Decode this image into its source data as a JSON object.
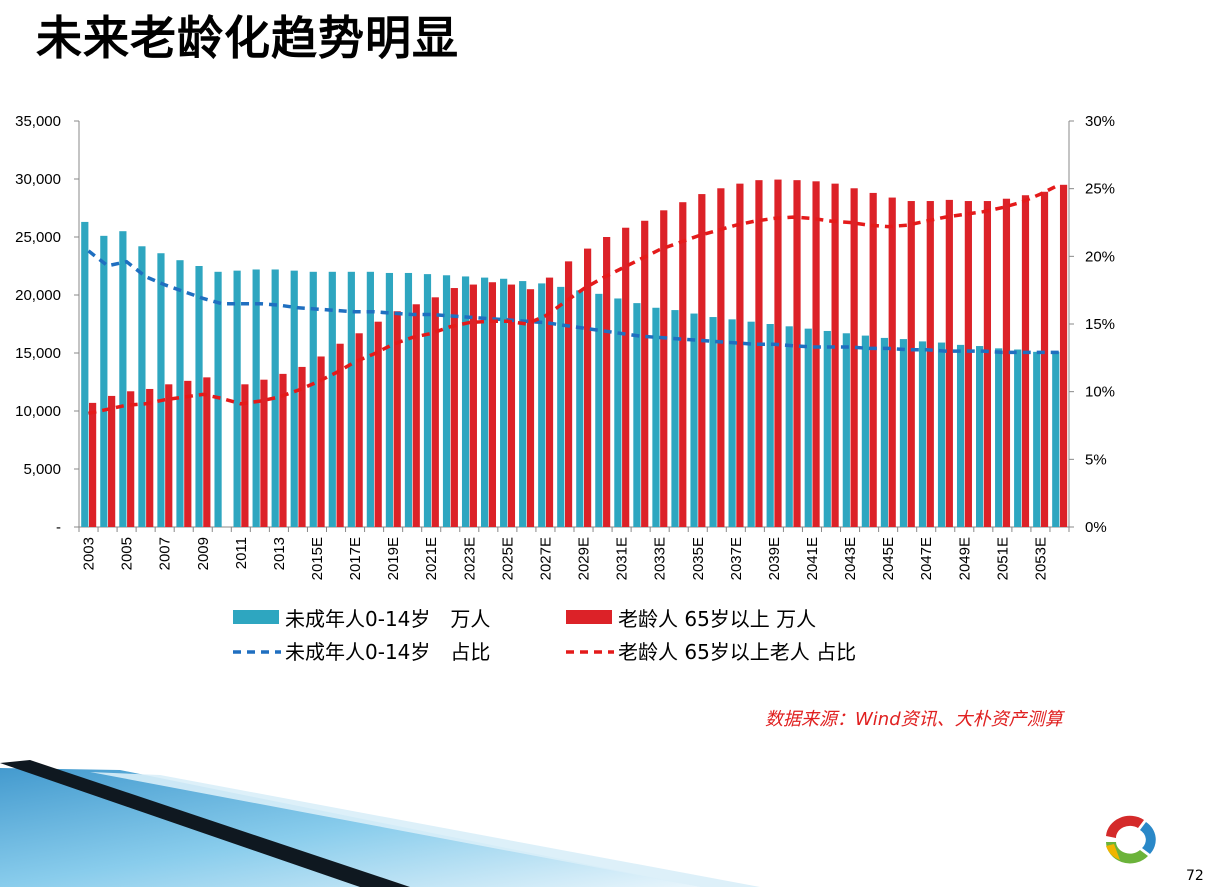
{
  "page": {
    "title": "未来老龄化趋势明显",
    "source": "数据来源：Wind资讯、大朴资产测算",
    "page_number": "72"
  },
  "colors": {
    "child_bar": "#2ea6c0",
    "elderly_bar": "#dc2228",
    "child_line": "#1f6fc0",
    "elderly_line": "#e41a1a",
    "source_text": "#e02020"
  },
  "chart_data": {
    "type": "bar",
    "categories": [
      "2003",
      "2004",
      "2005",
      "2006",
      "2007",
      "2008",
      "2009",
      "2010",
      "2011",
      "2012",
      "2013",
      "2014",
      "2015E",
      "2016E",
      "2017E",
      "2018E",
      "2019E",
      "2020E",
      "2021E",
      "2022E",
      "2023E",
      "2024E",
      "2025E",
      "2026E",
      "2027E",
      "2028E",
      "2029E",
      "2030E",
      "2031E",
      "2032E",
      "2033E",
      "2034E",
      "2035E",
      "2036E",
      "2037E",
      "2038E",
      "2039E",
      "2040E",
      "2041E",
      "2042E",
      "2043E",
      "2044E",
      "2045E",
      "2046E",
      "2047E",
      "2048E",
      "2049E",
      "2050E",
      "2051E",
      "2052E",
      "2053E",
      "2054E"
    ],
    "x_tick_labels": [
      "2003",
      "2005",
      "2007",
      "2009",
      "2011",
      "2013",
      "2015E",
      "2017E",
      "2019E",
      "2021E",
      "2023E",
      "2025E",
      "2027E",
      "2029E",
      "2031E",
      "2033E",
      "2035E",
      "2037E",
      "2039E",
      "2041E",
      "2043E",
      "2045E",
      "2047E",
      "2049E",
      "2051E",
      "2053E"
    ],
    "left_axis": {
      "ylim": [
        0,
        35000
      ],
      "ticks": [
        "-",
        "5,000",
        "10,000",
        "15,000",
        "20,000",
        "25,000",
        "30,000",
        "35,000"
      ]
    },
    "right_axis": {
      "ylim": [
        0,
        30
      ],
      "ticks": [
        "0%",
        "5%",
        "10%",
        "15%",
        "20%",
        "25%",
        "30%"
      ]
    },
    "series": [
      {
        "name": "未成年人0-14岁　万人",
        "type": "bar",
        "axis": "left",
        "values": [
          26300,
          25100,
          25500,
          24200,
          23600,
          23000,
          22500,
          22000,
          22100,
          22200,
          22200,
          22100,
          22000,
          22000,
          22000,
          22000,
          21900,
          21900,
          21800,
          21700,
          21600,
          21500,
          21400,
          21200,
          21000,
          20700,
          20400,
          20100,
          19700,
          19300,
          18900,
          18700,
          18400,
          18100,
          17900,
          17700,
          17500,
          17300,
          17100,
          16900,
          16700,
          16500,
          16300,
          16200,
          16000,
          15900,
          15700,
          15600,
          15400,
          15300,
          15100,
          15100
        ]
      },
      {
        "name": "老龄人 65岁以上 万人",
        "type": "bar",
        "axis": "left",
        "values": [
          10700,
          11300,
          11700,
          11900,
          12300,
          12600,
          12900,
          null,
          12300,
          12700,
          13200,
          13800,
          14700,
          15800,
          16700,
          17700,
          18600,
          19200,
          19800,
          20600,
          20900,
          21100,
          20900,
          20500,
          21500,
          22900,
          24000,
          25000,
          25800,
          26400,
          27300,
          28000,
          28700,
          29200,
          29600,
          29900,
          29950,
          29900,
          29800,
          29600,
          29200,
          28800,
          28400,
          28100,
          28100,
          28200,
          28100,
          28100,
          28300,
          28600,
          28900,
          29500
        ]
      },
      {
        "name": "未成年人0-14岁　占比",
        "type": "line",
        "axis": "right",
        "values": [
          20.4,
          19.3,
          19.6,
          18.5,
          17.9,
          17.4,
          16.9,
          16.5,
          16.5,
          16.5,
          16.4,
          16.2,
          16.1,
          16.0,
          15.9,
          15.9,
          15.8,
          15.7,
          15.7,
          15.6,
          15.5,
          15.4,
          15.3,
          15.2,
          15.1,
          14.9,
          14.7,
          14.5,
          14.3,
          14.1,
          14.0,
          13.9,
          13.8,
          13.7,
          13.6,
          13.5,
          13.5,
          13.4,
          13.3,
          13.3,
          13.3,
          13.2,
          13.2,
          13.1,
          13.1,
          13.0,
          13.0,
          13.0,
          12.9,
          12.9,
          12.9,
          12.9
        ]
      },
      {
        "name": "老龄人 65岁以上老人 占比",
        "type": "line",
        "axis": "right",
        "values": [
          8.4,
          8.7,
          9.0,
          9.1,
          9.4,
          9.6,
          9.8,
          9.5,
          9.1,
          9.3,
          9.6,
          10.1,
          10.7,
          11.4,
          12.2,
          12.8,
          13.5,
          14.0,
          14.3,
          14.8,
          15.1,
          15.2,
          15.2,
          15.0,
          15.6,
          16.6,
          17.6,
          18.4,
          19.1,
          19.8,
          20.5,
          21.0,
          21.5,
          21.9,
          22.3,
          22.6,
          22.8,
          22.9,
          22.8,
          22.6,
          22.5,
          22.3,
          22.2,
          22.3,
          22.6,
          22.9,
          23.1,
          23.3,
          23.6,
          24.0,
          24.6,
          25.3
        ]
      }
    ],
    "legend": {
      "placement": "bottom",
      "items": [
        "未成年人0-14岁　万人",
        "老龄人 65岁以上 万人",
        "未成年人0-14岁　占比",
        "老龄人 65岁以上老人 占比"
      ]
    }
  }
}
